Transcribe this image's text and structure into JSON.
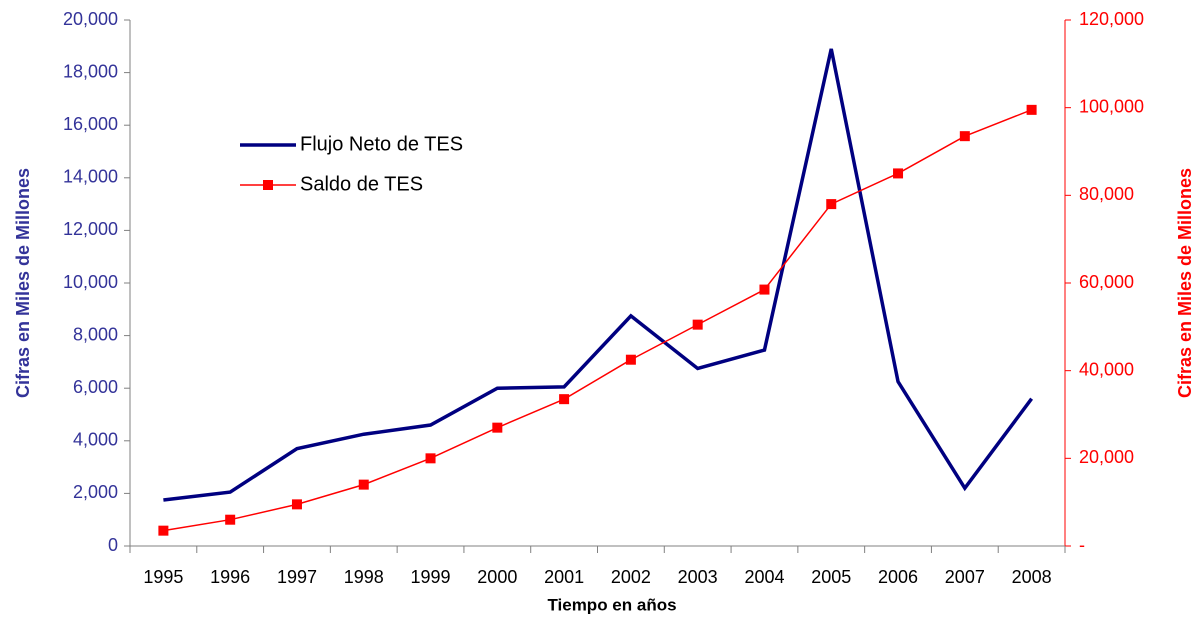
{
  "chart_data": {
    "type": "line",
    "categories": [
      "1995",
      "1996",
      "1997",
      "1998",
      "1999",
      "2000",
      "2001",
      "2002",
      "2003",
      "2004",
      "2005",
      "2006",
      "2007",
      "2008"
    ],
    "series": [
      {
        "name": "Flujo Neto de TES",
        "color": "#000080",
        "values": [
          1750,
          2050,
          3700,
          4250,
          4600,
          6000,
          6050,
          8750,
          6750,
          7450,
          18900,
          6250,
          2200,
          5600
        ]
      },
      {
        "name": "Saldo de TES",
        "color": "#ff0000",
        "axis": "y2",
        "values": [
          3500,
          6000,
          9500,
          14000,
          20000,
          27000,
          33500,
          42500,
          50500,
          58500,
          78000,
          85000,
          93500,
          99500
        ]
      }
    ],
    "xlabel": "Tiempo en años",
    "ylabel": "Cifras en Miles de Millones",
    "y2label": "Cifras en Miles de Millones",
    "ylim": [
      0,
      20000
    ],
    "yticks": [
      0,
      {
        "value": 2000,
        "label": "2,000"
      },
      {
        "value": 4000,
        "label": "4,000"
      },
      {
        "value": 6000,
        "label": "6,000"
      },
      {
        "value": 8000,
        "label": "8,000"
      },
      {
        "value": 10000,
        "label": "10,000"
      },
      {
        "value": 12000,
        "label": "12,000"
      },
      {
        "value": 14000,
        "label": "14,000"
      },
      {
        "value": 16000,
        "label": "16,000"
      },
      {
        "value": 18000,
        "label": "18,000"
      },
      {
        "value": 20000,
        "label": "20,000"
      }
    ],
    "y2lim": [
      0,
      120000
    ],
    "y2ticks": [
      {
        "value": 0,
        "label": "-"
      },
      {
        "value": 20000,
        "label": "20,000"
      },
      {
        "value": 40000,
        "label": "40,000"
      },
      {
        "value": 60000,
        "label": "60,000"
      },
      {
        "value": 80000,
        "label": "80,000"
      },
      {
        "value": 100000,
        "label": "100,000"
      },
      {
        "value": 120000,
        "label": "120,000"
      }
    ],
    "legend": "upper left"
  }
}
